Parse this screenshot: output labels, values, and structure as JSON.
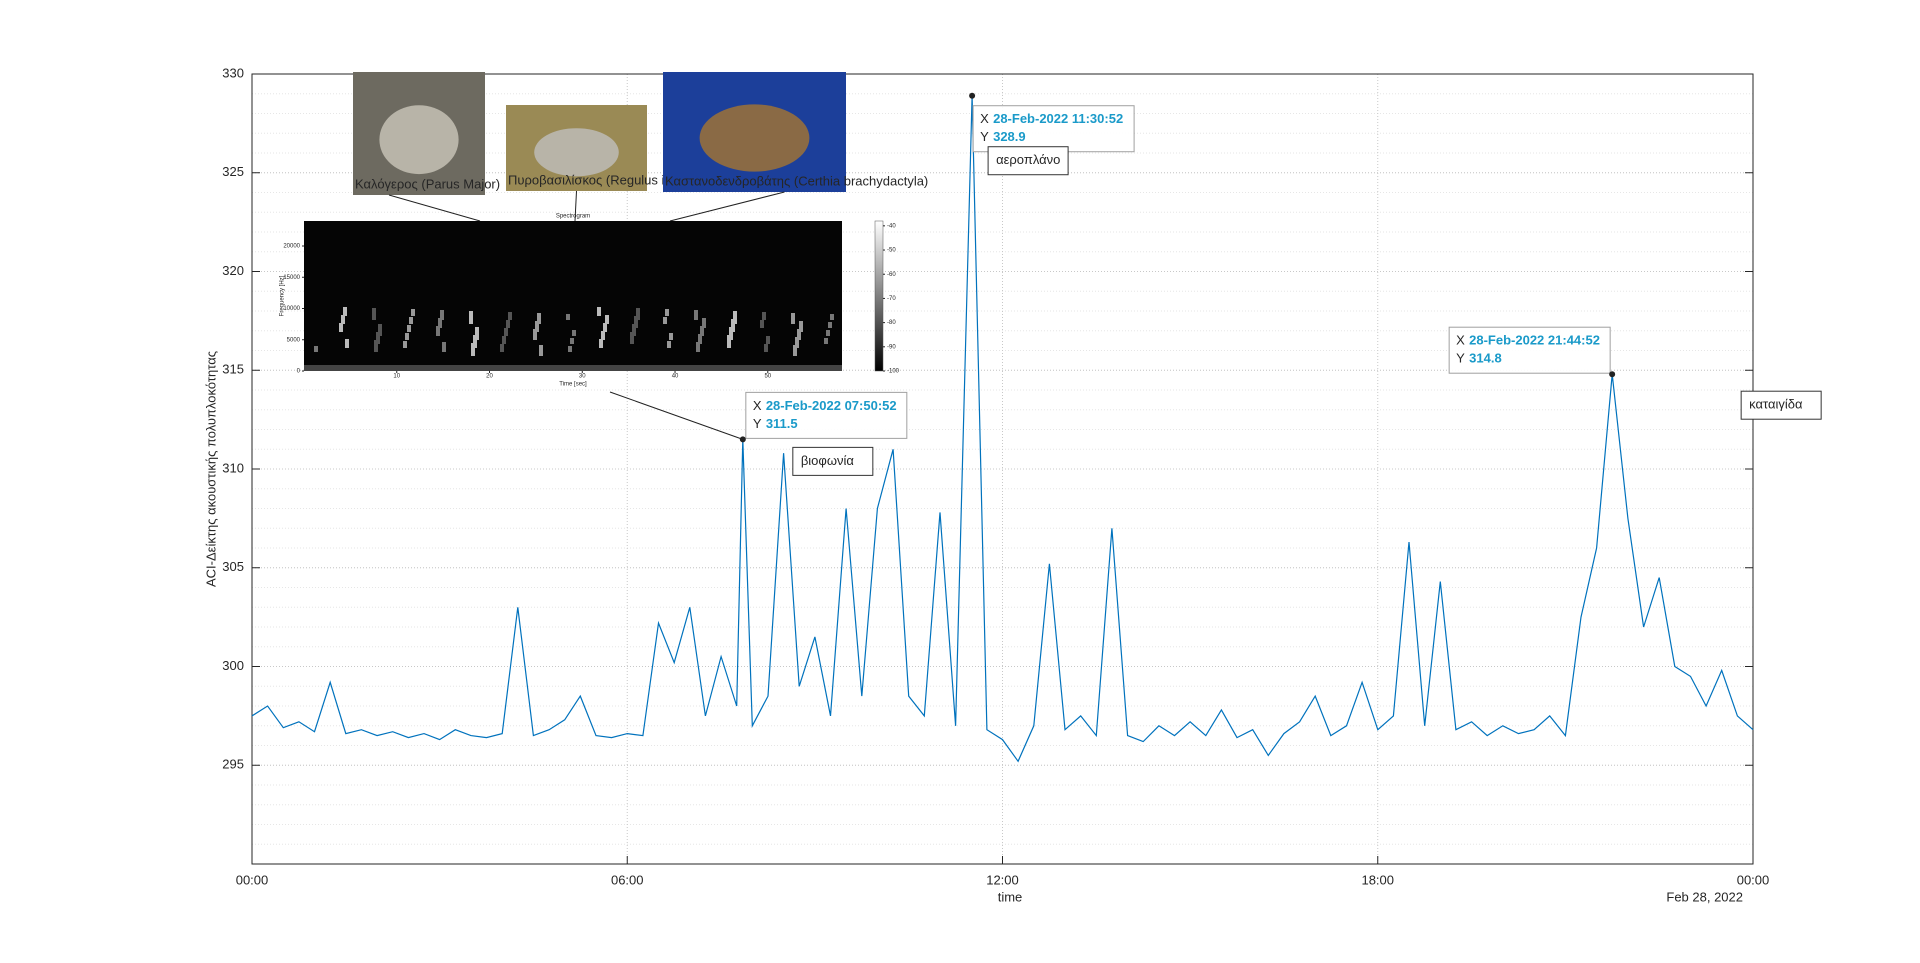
{
  "chart_data": {
    "type": "line",
    "xlabel": "time",
    "ylabel": "ACI-Δείκτης ακουστικής πολυπλοκότητας",
    "date_label": "Feb 28, 2022",
    "xlim": [
      0,
      24
    ],
    "xticks": [
      {
        "value": 0,
        "label": "00:00"
      },
      {
        "value": 6,
        "label": "06:00"
      },
      {
        "value": 12,
        "label": "12:00"
      },
      {
        "value": 18,
        "label": "18:00"
      },
      {
        "value": 24,
        "label": "00:00"
      }
    ],
    "ylim": [
      290,
      330
    ],
    "yticks": [
      295,
      300,
      305,
      310,
      315,
      320,
      325,
      330
    ],
    "grid": true,
    "minor_grid": true,
    "series": [
      {
        "color": "#0072bd",
        "x": [
          0,
          0.25,
          0.5,
          0.75,
          1,
          1.25,
          1.5,
          1.75,
          2,
          2.25,
          2.5,
          2.75,
          3,
          3.25,
          3.5,
          3.75,
          4,
          4.25,
          4.5,
          4.75,
          5,
          5.25,
          5.5,
          5.75,
          6,
          6.25,
          6.5,
          6.75,
          7,
          7.25,
          7.5,
          7.75,
          7.848,
          8,
          8.25,
          8.5,
          8.75,
          9,
          9.25,
          9.5,
          9.75,
          10,
          10.25,
          10.5,
          10.75,
          11,
          11.25,
          11.514,
          11.75,
          12,
          12.25,
          12.5,
          12.75,
          13,
          13.25,
          13.5,
          13.75,
          14,
          14.25,
          14.5,
          14.75,
          15,
          15.25,
          15.5,
          15.75,
          16,
          16.25,
          16.5,
          16.75,
          17,
          17.25,
          17.5,
          17.75,
          18,
          18.25,
          18.5,
          18.75,
          19,
          19.25,
          19.5,
          19.75,
          20,
          20.25,
          20.5,
          20.75,
          21,
          21.25,
          21.5,
          21.748,
          22,
          22.25,
          22.5,
          22.75,
          23,
          23.25,
          23.5,
          23.75,
          24
        ],
        "values": [
          297.5,
          298,
          296.9,
          297.2,
          296.7,
          299.2,
          296.6,
          296.8,
          296.5,
          296.7,
          296.4,
          296.6,
          296.3,
          296.8,
          296.5,
          296.4,
          296.6,
          303,
          296.5,
          296.8,
          297.3,
          298.5,
          296.5,
          296.4,
          296.6,
          296.5,
          302.2,
          300.2,
          303,
          297.5,
          300.5,
          298,
          311.5,
          297,
          298.5,
          310.8,
          299,
          301.5,
          297.5,
          308,
          298.5,
          308,
          311,
          298.5,
          297.5,
          307.8,
          297,
          328.9,
          296.8,
          296.3,
          295.2,
          297,
          305.2,
          296.8,
          297.5,
          296.5,
          307,
          296.5,
          296.2,
          297,
          296.5,
          297.2,
          296.5,
          297.8,
          296.4,
          296.8,
          295.5,
          296.6,
          297.2,
          298.5,
          296.5,
          297,
          299.2,
          296.8,
          297.5,
          306.3,
          297,
          304.3,
          296.8,
          297.2,
          296.5,
          297,
          296.6,
          296.8,
          297.5,
          296.5,
          302.5,
          306,
          314.8,
          307.5,
          302,
          304.5,
          300,
          299.5,
          298,
          299.8,
          297.5,
          296.8
        ]
      }
    ],
    "datatip_x_label": "X",
    "datatip_y_label": "Y",
    "datatips": [
      {
        "x": 7.848,
        "x_text": "28-Feb-2022 07:50:52",
        "note": "βιοφωνία"
      },
      {
        "x": 11.514,
        "x_text": "28-Feb-2022 11:30:52",
        "note": "αεροπλάνο"
      },
      {
        "x": 21.748,
        "x_text": "28-Feb-2022 21:44:52",
        "note": "καταιγίδα"
      }
    ],
    "inset": {
      "birds": [
        "Καλόγερος (Parus Major)",
        "Πυροβασιλίσκος (Regulus ignicapilla)",
        "Καστανοδενδροβάτης (Certhia brachydactyla)"
      ],
      "title": "Spectrogram",
      "xlabel": "Time [sec]",
      "ylabel": "Frequency [Hz]",
      "xlim": [
        0,
        58
      ],
      "xticks": [
        10,
        20,
        30,
        40,
        50
      ],
      "ylim": [
        0,
        24000
      ],
      "yticks": [
        0,
        5000,
        10000,
        15000,
        20000
      ],
      "clim": [
        -100,
        -38
      ],
      "cticks": [
        -40,
        -50,
        -60,
        -70,
        -80,
        -90,
        -100
      ]
    }
  }
}
